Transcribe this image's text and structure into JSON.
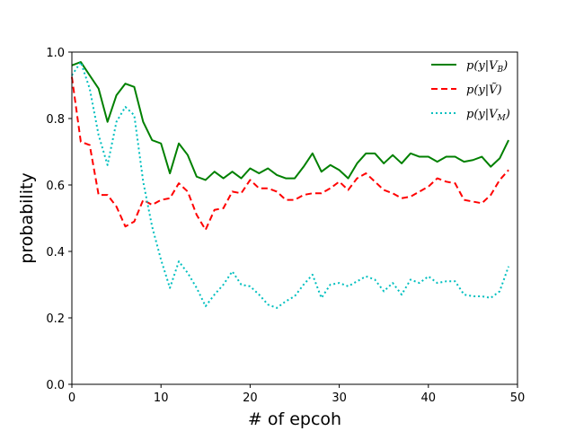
{
  "chart_data": {
    "type": "line",
    "xlabel": "# of epcoh",
    "ylabel": "probability",
    "xlim": [
      0,
      50
    ],
    "ylim": [
      0.0,
      1.0
    ],
    "xticks": [
      "0",
      "10",
      "20",
      "30",
      "40",
      "50"
    ],
    "yticks": [
      "0.0",
      "0.2",
      "0.4",
      "0.6",
      "0.8",
      "1.0"
    ],
    "grid": false,
    "legend_position": "top-right",
    "x": [
      0,
      1,
      2,
      3,
      4,
      5,
      6,
      7,
      8,
      9,
      10,
      11,
      12,
      13,
      14,
      15,
      16,
      17,
      18,
      19,
      20,
      21,
      22,
      23,
      24,
      25,
      26,
      27,
      28,
      29,
      30,
      31,
      32,
      33,
      34,
      35,
      36,
      37,
      38,
      39,
      40,
      41,
      42,
      43,
      44,
      45,
      46,
      47,
      48,
      49
    ],
    "series": [
      {
        "name": "p(y|V_B)",
        "legend_main": "p(y|V",
        "legend_sub": "B",
        "legend_end": ")",
        "color": "#008000",
        "style": "solid",
        "values": [
          0.96,
          0.97,
          0.93,
          0.89,
          0.79,
          0.87,
          0.905,
          0.895,
          0.79,
          0.735,
          0.725,
          0.635,
          0.725,
          0.69,
          0.625,
          0.615,
          0.64,
          0.62,
          0.64,
          0.62,
          0.65,
          0.635,
          0.65,
          0.63,
          0.62,
          0.62,
          0.655,
          0.695,
          0.64,
          0.66,
          0.645,
          0.62,
          0.665,
          0.695,
          0.695,
          0.665,
          0.69,
          0.665,
          0.695,
          0.685,
          0.685,
          0.67,
          0.685,
          0.685,
          0.67,
          0.675,
          0.685,
          0.655,
          0.68,
          0.735
        ]
      },
      {
        "name": "p(y|Ṽ)",
        "legend_main": "p(y|Ṽ)",
        "legend_sub": "",
        "legend_end": "",
        "color": "#ff0000",
        "style": "dashed",
        "values": [
          0.925,
          0.73,
          0.72,
          0.57,
          0.57,
          0.535,
          0.475,
          0.49,
          0.555,
          0.54,
          0.555,
          0.56,
          0.605,
          0.58,
          0.51,
          0.465,
          0.525,
          0.53,
          0.58,
          0.575,
          0.615,
          0.59,
          0.59,
          0.58,
          0.555,
          0.555,
          0.57,
          0.575,
          0.575,
          0.59,
          0.61,
          0.585,
          0.62,
          0.635,
          0.61,
          0.585,
          0.575,
          0.56,
          0.565,
          0.58,
          0.595,
          0.62,
          0.61,
          0.605,
          0.555,
          0.55,
          0.545,
          0.57,
          0.615,
          0.645
        ]
      },
      {
        "name": "p(y|V_M)",
        "legend_main": "p(y|V",
        "legend_sub": "M",
        "legend_end": ")",
        "color": "#00bfbf",
        "style": "dotted",
        "values": [
          0.93,
          0.97,
          0.89,
          0.75,
          0.66,
          0.79,
          0.835,
          0.81,
          0.61,
          0.475,
          0.375,
          0.29,
          0.37,
          0.335,
          0.29,
          0.235,
          0.27,
          0.3,
          0.34,
          0.3,
          0.295,
          0.27,
          0.24,
          0.23,
          0.25,
          0.265,
          0.3,
          0.33,
          0.26,
          0.3,
          0.305,
          0.295,
          0.31,
          0.325,
          0.315,
          0.28,
          0.305,
          0.27,
          0.315,
          0.305,
          0.325,
          0.305,
          0.31,
          0.31,
          0.27,
          0.265,
          0.265,
          0.26,
          0.28,
          0.355
        ]
      }
    ]
  }
}
